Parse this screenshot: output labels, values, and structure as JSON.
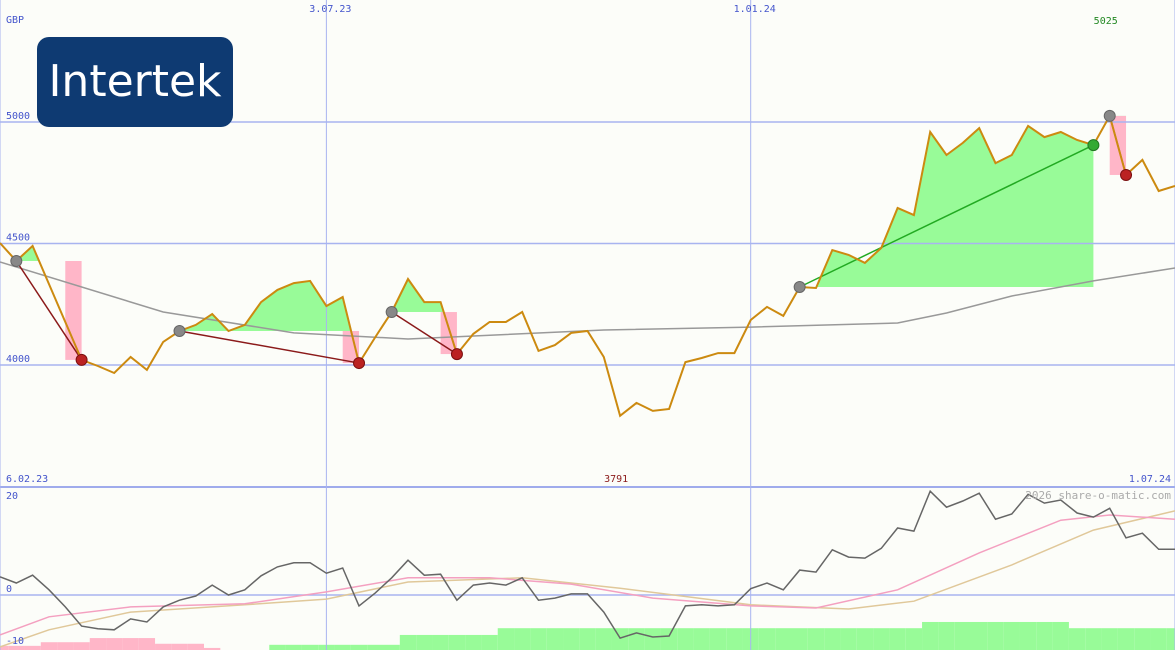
{
  "chart_data": {
    "type": "line",
    "currency": "GBP",
    "logo": "Intertek",
    "credit": "2026 share-o-matic.com",
    "xlim": [
      0,
      72
    ],
    "xticks": [
      {
        "value": 0,
        "label": "6.02.23"
      },
      {
        "value": 20,
        "label": "3.07.23"
      },
      {
        "value": 46,
        "label": "1.01.24"
      },
      {
        "value": 72,
        "label": "1.07.24"
      }
    ],
    "ylim": [
      3498,
      5502
    ],
    "yticks": [
      4000,
      4500,
      5000
    ],
    "grid": true,
    "max": 5025,
    "max_x": 68,
    "min": 3791,
    "min_x": 38,
    "price": {
      "color": "#cc8a10",
      "values": [
        4502,
        4428,
        4490,
        4333,
        4177,
        4021,
        3996,
        3967,
        4033,
        3980,
        4095,
        4140,
        4165,
        4210,
        4140,
        4165,
        4259,
        4309,
        4337,
        4346,
        4243,
        4280,
        4008,
        4115,
        4218,
        4354,
        4259,
        4259,
        4045,
        4128,
        4177,
        4177,
        4218,
        4058,
        4082,
        4132,
        4140,
        4033,
        3791,
        3844,
        3811,
        3819,
        4012,
        4029,
        4049,
        4049,
        4185,
        4239,
        4202,
        4321,
        4317,
        4473,
        4453,
        4420,
        4482,
        4646,
        4617,
        4959,
        4864,
        4914,
        4975,
        4831,
        4864,
        4984,
        4938,
        4959,
        4926,
        4905,
        5025,
        4782,
        4844,
        4716,
        4737
      ]
    },
    "moving_average": {
      "color": "#999999",
      "x": [
        0,
        10,
        18,
        25,
        37,
        46,
        55,
        58,
        62,
        67,
        72
      ],
      "values": [
        4424,
        4218,
        4132,
        4107,
        4144,
        4156,
        4173,
        4214,
        4284,
        4346,
        4399
      ]
    },
    "trades": [
      {
        "entry": 1,
        "exit": 5
      },
      {
        "entry": 11,
        "exit": 22
      },
      {
        "entry": 24,
        "exit": 28
      },
      {
        "entry": 49,
        "exit": 67
      },
      {
        "entry": 68,
        "exit": 69
      }
    ],
    "oscillator": {
      "ylim": [
        -10.6,
        20.8
      ],
      "yticks": [
        -10,
        0,
        20
      ],
      "main": {
        "color": "#666666",
        "values": [
          3.5,
          2.3,
          3.8,
          1.0,
          -2.3,
          -6.0,
          -6.5,
          -6.7,
          -4.6,
          -5.2,
          -2.3,
          -1.0,
          -0.2,
          1.9,
          0,
          1.0,
          3.7,
          5.4,
          6.2,
          6.2,
          4.2,
          5.2,
          -2.1,
          0.4,
          3.3,
          6.7,
          3.8,
          4.0,
          -1.0,
          1.9,
          2.3,
          1.9,
          3.3,
          -1.0,
          -0.6,
          0.2,
          0.2,
          -3.3,
          -8.3,
          -7.3,
          -8.1,
          -7.9,
          -2.1,
          -1.9,
          -2.1,
          -1.9,
          1.2,
          2.3,
          1.0,
          4.8,
          4.4,
          8.7,
          7.3,
          7.1,
          9.0,
          12.9,
          12.3,
          20.0,
          16.9,
          18.1,
          19.6,
          14.6,
          15.6,
          19.4,
          17.7,
          18.3,
          15.8,
          15.0,
          16.7,
          11.0,
          11.9,
          8.8,
          8.8
        ]
      },
      "fast": {
        "color": "#f4a0c0",
        "x": [
          0,
          3,
          8,
          15,
          20,
          25,
          30,
          35,
          40,
          46,
          50,
          55,
          60,
          65,
          68,
          72
        ],
        "values": [
          -7.7,
          -4.2,
          -2.3,
          -1.7,
          0.6,
          3.3,
          3.3,
          2.1,
          -0.6,
          -2.1,
          -2.5,
          1.0,
          8.1,
          14.4,
          15.4,
          14.6
        ]
      },
      "slow": {
        "color": "#e0c89a",
        "x": [
          0,
          3,
          8,
          15,
          20,
          25,
          32,
          38,
          46,
          52,
          56,
          62,
          67,
          72
        ],
        "values": [
          -10,
          -6.7,
          -3.3,
          -1.9,
          -0.8,
          2.5,
          3.3,
          1.3,
          -1.9,
          -2.7,
          -1.2,
          5.8,
          12.5,
          16.2
        ]
      },
      "histogram": {
        "values": [
          -0.8,
          -0.8,
          -0.8,
          -1.5,
          -1.5,
          -1.5,
          -2.3,
          -2.3,
          -2.3,
          -2.3,
          -1.2,
          -1.2,
          -1.2,
          -0.4,
          0,
          0,
          0,
          1,
          1,
          1,
          1,
          1,
          1,
          1,
          1,
          2.9,
          2.9,
          2.9,
          2.9,
          2.9,
          2.9,
          4.2,
          4.2,
          4.2,
          4.2,
          4.2,
          4.2,
          4.2,
          4.2,
          4.2,
          4.2,
          4.2,
          4.2,
          4.2,
          4.2,
          4.2,
          4.2,
          4.2,
          4.2,
          4.2,
          4.2,
          4.2,
          4.2,
          4.2,
          4.2,
          4.2,
          4.2,
          5.4,
          5.4,
          5.4,
          5.4,
          5.4,
          5.4,
          5.4,
          5.4,
          5.4,
          4.2,
          4.2,
          4.2,
          4.2,
          4.2,
          4.2,
          4.2
        ]
      }
    }
  }
}
